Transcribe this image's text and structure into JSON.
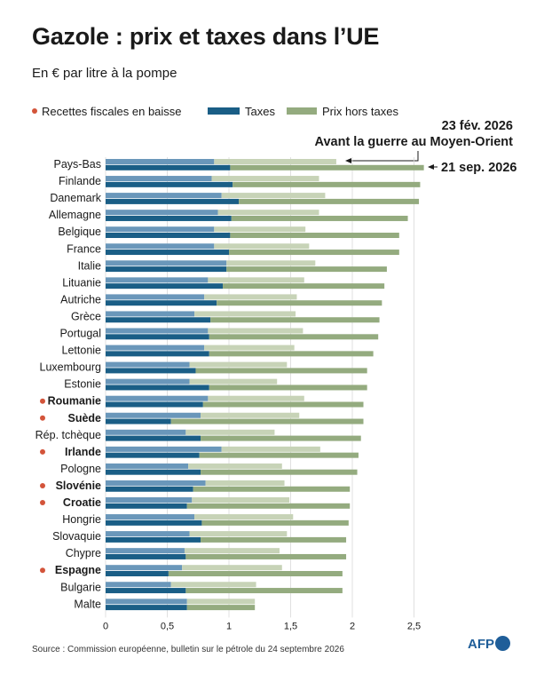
{
  "title": "Gazole : prix et taxes dans l’UE",
  "subtitle": "En € par litre à la pompe",
  "source": "Source : Commission européenne, bulletin sur le pétrole du 24 septembre 2026",
  "logo_text": "AFP",
  "colors": {
    "taxes": "#1a5e86",
    "prix_hors_taxes": "#94ab7f",
    "taxes_light": "#6a97ba",
    "prix_hors_taxes_light": "#c7d3b7",
    "dot": "#d3543a"
  },
  "chart_data": {
    "type": "bar",
    "orientation": "horizontal",
    "stacked": true,
    "legend": {
      "dot_label": "Recettes fiscales en baisse",
      "taxes": "Taxes",
      "prix_hors_taxes": "Prix hors taxes",
      "placement": "top"
    },
    "annotations": {
      "before_date": "23 fév. 2026",
      "before_label": "Avant la guerre au Moyen-Orient",
      "after_date": "21 sep. 2026"
    },
    "x_ticks": [
      "0",
      "0,5",
      "1",
      "1,5",
      "2",
      "2,5"
    ],
    "x_tick_values": [
      0,
      0.5,
      1,
      1.5,
      2,
      2.5
    ],
    "xlim": [
      0,
      2.65
    ],
    "categories": [
      {
        "name": "Pays-Bas",
        "highlight": false,
        "feb_tax": 0.88,
        "feb_total": 1.87,
        "sep_tax": 1.01,
        "sep_total": 2.58
      },
      {
        "name": "Finlande",
        "highlight": false,
        "feb_tax": 0.86,
        "feb_total": 1.73,
        "sep_tax": 1.03,
        "sep_total": 2.55
      },
      {
        "name": "Danemark",
        "highlight": false,
        "feb_tax": 0.94,
        "feb_total": 1.78,
        "sep_tax": 1.08,
        "sep_total": 2.54
      },
      {
        "name": "Allemagne",
        "highlight": false,
        "feb_tax": 0.91,
        "feb_total": 1.73,
        "sep_tax": 1.02,
        "sep_total": 2.45
      },
      {
        "name": "Belgique",
        "highlight": false,
        "feb_tax": 0.88,
        "feb_total": 1.62,
        "sep_tax": 1.01,
        "sep_total": 2.38
      },
      {
        "name": "France",
        "highlight": false,
        "feb_tax": 0.88,
        "feb_total": 1.65,
        "sep_tax": 1.0,
        "sep_total": 2.38
      },
      {
        "name": "Italie",
        "highlight": false,
        "feb_tax": 0.98,
        "feb_total": 1.7,
        "sep_tax": 0.98,
        "sep_total": 2.28
      },
      {
        "name": "Lituanie",
        "highlight": false,
        "feb_tax": 0.83,
        "feb_total": 1.61,
        "sep_tax": 0.95,
        "sep_total": 2.26
      },
      {
        "name": "Autriche",
        "highlight": false,
        "feb_tax": 0.8,
        "feb_total": 1.55,
        "sep_tax": 0.9,
        "sep_total": 2.24
      },
      {
        "name": "Grèce",
        "highlight": false,
        "feb_tax": 0.72,
        "feb_total": 1.54,
        "sep_tax": 0.85,
        "sep_total": 2.22
      },
      {
        "name": "Portugal",
        "highlight": false,
        "feb_tax": 0.83,
        "feb_total": 1.6,
        "sep_tax": 0.84,
        "sep_total": 2.21
      },
      {
        "name": "Lettonie",
        "highlight": false,
        "feb_tax": 0.8,
        "feb_total": 1.53,
        "sep_tax": 0.84,
        "sep_total": 2.17
      },
      {
        "name": "Luxembourg",
        "highlight": false,
        "feb_tax": 0.68,
        "feb_total": 1.47,
        "sep_tax": 0.73,
        "sep_total": 2.12
      },
      {
        "name": "Estonie",
        "highlight": false,
        "feb_tax": 0.68,
        "feb_total": 1.39,
        "sep_tax": 0.84,
        "sep_total": 2.12
      },
      {
        "name": "Roumanie",
        "highlight": true,
        "feb_tax": 0.83,
        "feb_total": 1.61,
        "sep_tax": 0.79,
        "sep_total": 2.09
      },
      {
        "name": "Suède",
        "highlight": true,
        "feb_tax": 0.77,
        "feb_total": 1.57,
        "sep_tax": 0.53,
        "sep_total": 2.09
      },
      {
        "name": "Rép. tchèque",
        "highlight": false,
        "feb_tax": 0.65,
        "feb_total": 1.37,
        "sep_tax": 0.77,
        "sep_total": 2.07
      },
      {
        "name": "Irlande",
        "highlight": true,
        "feb_tax": 0.94,
        "feb_total": 1.74,
        "sep_tax": 0.76,
        "sep_total": 2.05
      },
      {
        "name": "Pologne",
        "highlight": false,
        "feb_tax": 0.67,
        "feb_total": 1.43,
        "sep_tax": 0.77,
        "sep_total": 2.04
      },
      {
        "name": "Slovénie",
        "highlight": true,
        "feb_tax": 0.81,
        "feb_total": 1.45,
        "sep_tax": 0.71,
        "sep_total": 1.98
      },
      {
        "name": "Croatie",
        "highlight": true,
        "feb_tax": 0.7,
        "feb_total": 1.49,
        "sep_tax": 0.66,
        "sep_total": 1.98
      },
      {
        "name": "Hongrie",
        "highlight": false,
        "feb_tax": 0.72,
        "feb_total": 1.52,
        "sep_tax": 0.78,
        "sep_total": 1.97
      },
      {
        "name": "Slovaquie",
        "highlight": false,
        "feb_tax": 0.68,
        "feb_total": 1.47,
        "sep_tax": 0.77,
        "sep_total": 1.95
      },
      {
        "name": "Chypre",
        "highlight": false,
        "feb_tax": 0.64,
        "feb_total": 1.41,
        "sep_tax": 0.65,
        "sep_total": 1.95
      },
      {
        "name": "Espagne",
        "highlight": true,
        "feb_tax": 0.62,
        "feb_total": 1.43,
        "sep_tax": 0.51,
        "sep_total": 1.92
      },
      {
        "name": "Bulgarie",
        "highlight": false,
        "feb_tax": 0.53,
        "feb_total": 1.22,
        "sep_tax": 0.65,
        "sep_total": 1.92
      },
      {
        "name": "Malte",
        "highlight": false,
        "feb_tax": 0.66,
        "feb_total": 1.21,
        "sep_tax": 0.66,
        "sep_total": 1.21
      }
    ]
  }
}
